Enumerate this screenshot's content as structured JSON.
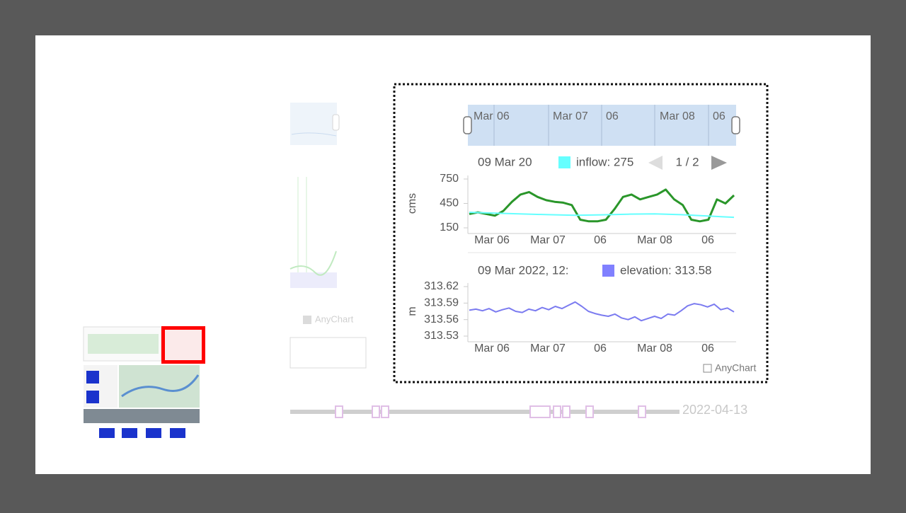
{
  "navigator": {
    "labels": [
      "Mar",
      "06",
      "Mar 07",
      "06",
      "Mar 08",
      "06"
    ]
  },
  "watermark": "AnyChart",
  "background": {
    "watermark": "AnyChart",
    "timeline_date": "2022-04-13"
  },
  "chart_data": [
    {
      "type": "line",
      "ylabel": "cms",
      "ylim": [
        150,
        750
      ],
      "yticks": [
        750,
        450,
        150
      ],
      "xtick_labels": [
        "Mar 06",
        "Mar 07",
        "06",
        "Mar 08",
        "06"
      ],
      "tooltip": {
        "title": "09 Mar 20",
        "label": "inflow: 275",
        "color": "#66ffff",
        "pager": "1 / 2"
      },
      "series": [
        {
          "color": "#2a962a",
          "values": [
            320,
            340,
            320,
            300,
            360,
            470,
            560,
            590,
            530,
            490,
            470,
            460,
            430,
            250,
            230,
            230,
            250,
            380,
            530,
            560,
            500,
            530,
            560,
            620,
            500,
            430,
            250,
            230,
            250,
            500,
            450,
            550
          ]
        },
        {
          "color": "#66ffff",
          "values": [
            340,
            330,
            320,
            312,
            305,
            310,
            318,
            322,
            312,
            295,
            280
          ]
        }
      ]
    },
    {
      "type": "line",
      "ylabel": "m",
      "ylim": [
        313.53,
        313.62
      ],
      "yticks": [
        313.62,
        313.59,
        313.56,
        313.53
      ],
      "xtick_labels": [
        "Mar 06",
        "Mar 07",
        "06",
        "Mar 08",
        "06"
      ],
      "tooltip": {
        "title": "09 Mar 2022, 12:",
        "label": "elevation: 313.58",
        "color": "#8080ff"
      },
      "series": [
        {
          "color": "#7b7bf0",
          "values": [
            313.577,
            313.579,
            313.576,
            313.58,
            313.574,
            313.578,
            313.581,
            313.575,
            313.573,
            313.579,
            313.576,
            313.582,
            313.578,
            313.584,
            313.58,
            313.586,
            313.592,
            313.584,
            313.575,
            313.571,
            313.568,
            313.566,
            313.57,
            313.563,
            313.56,
            313.565,
            313.558,
            313.562,
            313.566,
            313.562,
            313.57,
            313.568,
            313.576,
            313.585,
            313.589,
            313.587,
            313.583,
            313.588,
            313.578,
            313.581,
            313.574
          ]
        }
      ]
    }
  ]
}
